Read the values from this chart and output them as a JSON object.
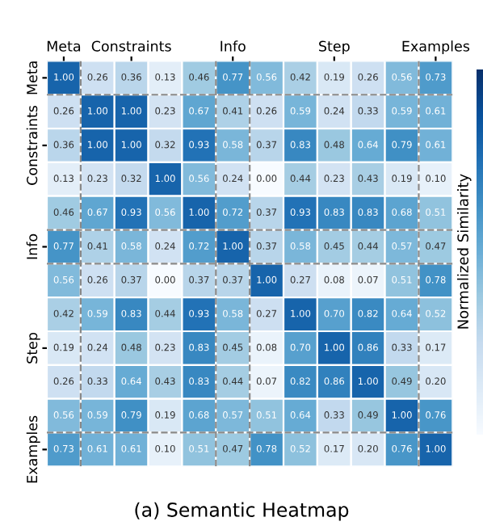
{
  "chart_data": {
    "type": "heatmap",
    "title": "(a) Semantic Heatmap",
    "clabel": "Normalized Similarity",
    "categories": [
      "Meta",
      null,
      "Constraints",
      null,
      null,
      "Info",
      null,
      null,
      "Step",
      null,
      null,
      "Examples"
    ],
    "y_categories": [
      "Meta",
      null,
      "Constraints",
      null,
      null,
      "Info",
      null,
      null,
      "Step",
      null,
      null,
      "Examples"
    ],
    "cells": [
      [
        1.0,
        0.26,
        0.36,
        0.13,
        0.46,
        0.77,
        0.56,
        0.42,
        0.19,
        0.26,
        0.56,
        0.73
      ],
      [
        0.26,
        1.0,
        1.0,
        0.23,
        0.67,
        0.41,
        0.26,
        0.59,
        0.24,
        0.33,
        0.59,
        0.61
      ],
      [
        0.36,
        1.0,
        1.0,
        0.32,
        0.93,
        0.58,
        0.37,
        0.83,
        0.48,
        0.64,
        0.79,
        0.61
      ],
      [
        0.13,
        0.23,
        0.32,
        1.0,
        0.56,
        0.24,
        0.0,
        0.44,
        0.23,
        0.43,
        0.19,
        0.1
      ],
      [
        0.46,
        0.67,
        0.93,
        0.56,
        1.0,
        0.72,
        0.37,
        0.93,
        0.83,
        0.83,
        0.68,
        0.51
      ],
      [
        0.77,
        0.41,
        0.58,
        0.24,
        0.72,
        1.0,
        0.37,
        0.58,
        0.45,
        0.44,
        0.57,
        0.47
      ],
      [
        0.56,
        0.26,
        0.37,
        0.0,
        0.37,
        0.37,
        1.0,
        0.27,
        0.08,
        0.07,
        0.51,
        0.78
      ],
      [
        0.42,
        0.59,
        0.83,
        0.44,
        0.93,
        0.58,
        0.27,
        1.0,
        0.7,
        0.82,
        0.64,
        0.52
      ],
      [
        0.19,
        0.24,
        0.48,
        0.23,
        0.83,
        0.45,
        0.08,
        0.7,
        1.0,
        0.86,
        0.33,
        0.17
      ],
      [
        0.26,
        0.33,
        0.64,
        0.43,
        0.83,
        0.44,
        0.07,
        0.82,
        0.86,
        1.0,
        0.49,
        0.2
      ],
      [
        0.56,
        0.59,
        0.79,
        0.19,
        0.68,
        0.57,
        0.51,
        0.64,
        0.33,
        0.49,
        1.0,
        0.76
      ],
      [
        0.73,
        0.61,
        0.61,
        0.1,
        0.51,
        0.47,
        0.78,
        0.52,
        0.17,
        0.2,
        0.76,
        1.0
      ]
    ],
    "cell_labels": [
      [
        "1.00",
        "0.26",
        "0.36",
        "0.13",
        "0.46",
        "0.77",
        "0.56",
        "0.42",
        "0.19",
        "0.26",
        "0.56",
        "0.73"
      ],
      [
        "0.26",
        "1.00",
        "1.00",
        "0.23",
        "0.67",
        "0.41",
        "0.26",
        "0.59",
        "0.24",
        "0.33",
        "0.59",
        "0.61"
      ],
      [
        "0.36",
        "1.00",
        "1.00",
        "0.32",
        "0.93",
        "0.58",
        "0.37",
        "0.83",
        "0.48",
        "0.64",
        "0.79",
        "0.61"
      ],
      [
        "0.13",
        "0.23",
        "0.32",
        "1.00",
        "0.56",
        "0.24",
        "0.00",
        "0.44",
        "0.23",
        "0.43",
        "0.19",
        "0.10"
      ],
      [
        "0.46",
        "0.67",
        "0.93",
        "0.56",
        "1.00",
        "0.72",
        "0.37",
        "0.93",
        "0.83",
        "0.83",
        "0.68",
        "0.51"
      ],
      [
        "0.77",
        "0.41",
        "0.58",
        "0.24",
        "0.72",
        "1.00",
        "0.37",
        "0.58",
        "0.45",
        "0.44",
        "0.57",
        "0.47"
      ],
      [
        "0.56",
        "0.26",
        "0.37",
        "0.00",
        "0.37",
        "0.37",
        "1.00",
        "0.27",
        "0.08",
        "0.07",
        "0.51",
        "0.78"
      ],
      [
        "0.42",
        "0.59",
        "0.83",
        "0.44",
        "0.93",
        "0.58",
        "0.27",
        "1.00",
        "0.70",
        "0.82",
        "0.64",
        "0.52"
      ],
      [
        "0.19",
        "0.24",
        "0.48",
        "0.23",
        "0.83",
        "0.45",
        "0.08",
        "0.70",
        "1.00",
        "0.86",
        "0.33",
        "0.17"
      ],
      [
        "0.26",
        "0.33",
        "0.64",
        "0.43",
        "0.83",
        "0.44",
        "0.07",
        "0.82",
        "0.86",
        "1.00",
        "0.49",
        "0.20"
      ],
      [
        "0.56",
        "0.59",
        "0.79",
        "0.19",
        "0.68",
        "0.57",
        "0.51",
        "0.64",
        "0.33",
        "0.49",
        "1.00",
        "0.76"
      ],
      [
        "0.73",
        "0.61",
        "0.61",
        "0.10",
        "0.51",
        "0.47",
        "0.78",
        "0.52",
        "0.17",
        "0.20",
        "0.76",
        "1.00"
      ]
    ]
  }
}
